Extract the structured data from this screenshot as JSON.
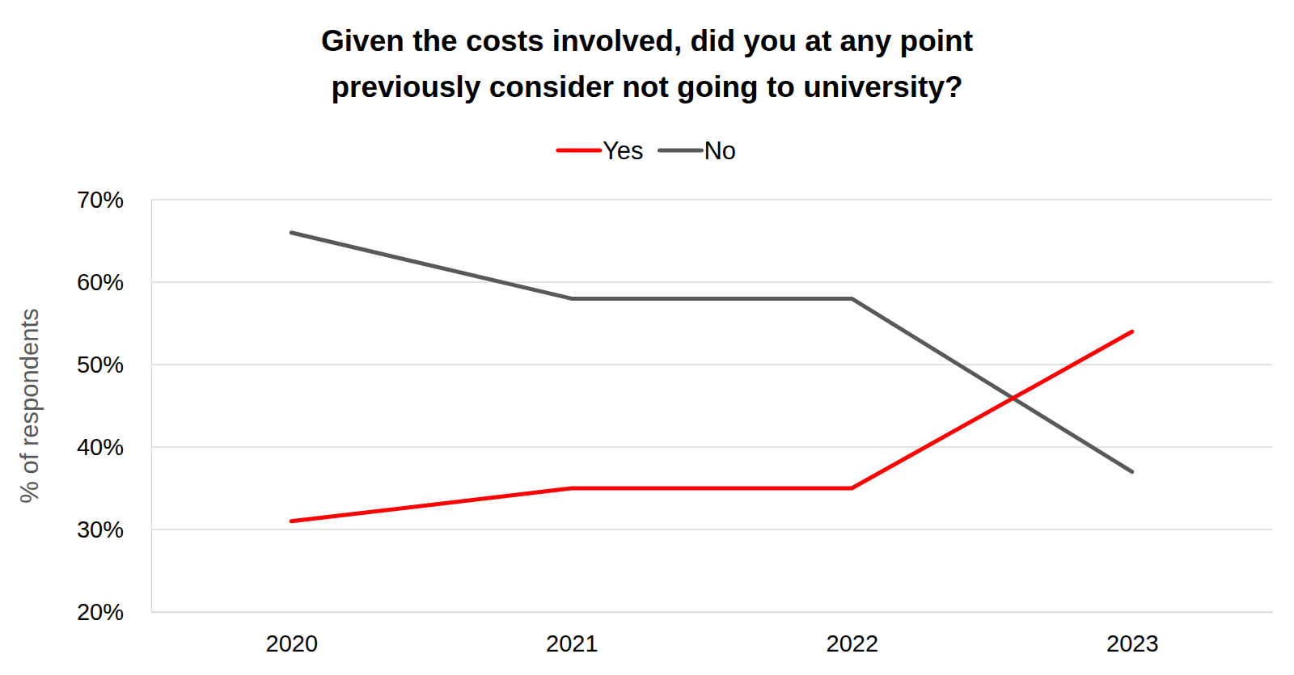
{
  "chart_data": {
    "type": "line",
    "title": [
      "Given the costs involved, did you at any point",
      "previously consider not going to university?"
    ],
    "y_label": "% of respondents",
    "categories": [
      "2020",
      "2021",
      "2022",
      "2023"
    ],
    "series": [
      {
        "name": "Yes",
        "color": "#ff0000",
        "values": [
          31,
          35,
          35,
          54
        ]
      },
      {
        "name": "No",
        "color": "#595959",
        "values": [
          66,
          58,
          58,
          37
        ]
      }
    ],
    "ylim": [
      20,
      70
    ],
    "yticks": [
      {
        "value": 20,
        "label": "20%"
      },
      {
        "value": 30,
        "label": "30%"
      },
      {
        "value": 40,
        "label": "40%"
      },
      {
        "value": 50,
        "label": "50%"
      },
      {
        "value": 60,
        "label": "60%"
      },
      {
        "value": 70,
        "label": "70%"
      }
    ],
    "grid": true,
    "legend": "top"
  }
}
